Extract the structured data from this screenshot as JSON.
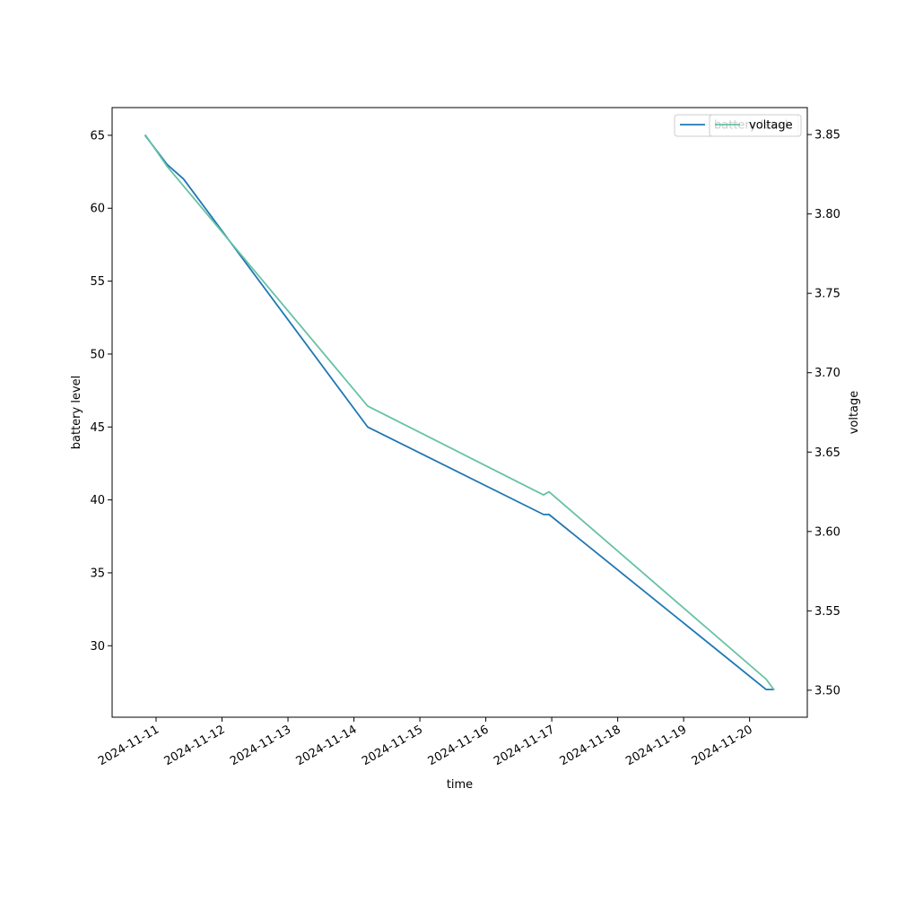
{
  "chart_data": {
    "type": "line",
    "title": "",
    "xlabel": "time",
    "ylabel_left": "battery level",
    "ylabel_right": "voltage",
    "x_ticks": [
      "2024-11-11",
      "2024-11-12",
      "2024-11-13",
      "2024-11-14",
      "2024-11-15",
      "2024-11-16",
      "2024-11-17",
      "2024-11-18",
      "2024-11-19",
      "2024-11-20"
    ],
    "xlim": [
      "2024-11-10T08:00",
      "2024-11-20T21:00"
    ],
    "ylim_left": [
      25.1,
      66.9
    ],
    "ylim_right": [
      3.483,
      3.867
    ],
    "y_ticks_left": [
      "30",
      "35",
      "40",
      "45",
      "50",
      "55",
      "60",
      "65"
    ],
    "y_ticks_right": [
      "3.50",
      "3.55",
      "3.60",
      "3.65",
      "3.70",
      "3.75",
      "3.80",
      "3.85"
    ],
    "legend_placement": "top-right",
    "series": [
      {
        "name": "battery level",
        "axis": "left",
        "color": "#1f77b4",
        "points": [
          {
            "x": "2024-11-10T20:00",
            "y": 65
          },
          {
            "x": "2024-11-11T04:00",
            "y": 63
          },
          {
            "x": "2024-11-11T10:00",
            "y": 62
          },
          {
            "x": "2024-11-14T05:00",
            "y": 45
          },
          {
            "x": "2024-11-16T21:00",
            "y": 39
          },
          {
            "x": "2024-11-16T23:00",
            "y": 39
          },
          {
            "x": "2024-11-20T06:00",
            "y": 27
          },
          {
            "x": "2024-11-20T09:00",
            "y": 27
          }
        ]
      },
      {
        "name": "voltage",
        "axis": "right",
        "color": "#66c2a5",
        "points": [
          {
            "x": "2024-11-10T20:00",
            "y": 3.85
          },
          {
            "x": "2024-11-11T04:00",
            "y": 3.83
          },
          {
            "x": "2024-11-14T05:00",
            "y": 3.679
          },
          {
            "x": "2024-11-16T21:00",
            "y": 3.623
          },
          {
            "x": "2024-11-16T23:00",
            "y": 3.625
          },
          {
            "x": "2024-11-20T06:00",
            "y": 3.507
          },
          {
            "x": "2024-11-20T09:00",
            "y": 3.5
          }
        ]
      }
    ],
    "legends": [
      {
        "placement": "top-right",
        "label": "battery level",
        "color": "#1f77b4"
      },
      {
        "placement": "top-right",
        "label": "voltage",
        "color": "#66c2a5"
      }
    ]
  }
}
